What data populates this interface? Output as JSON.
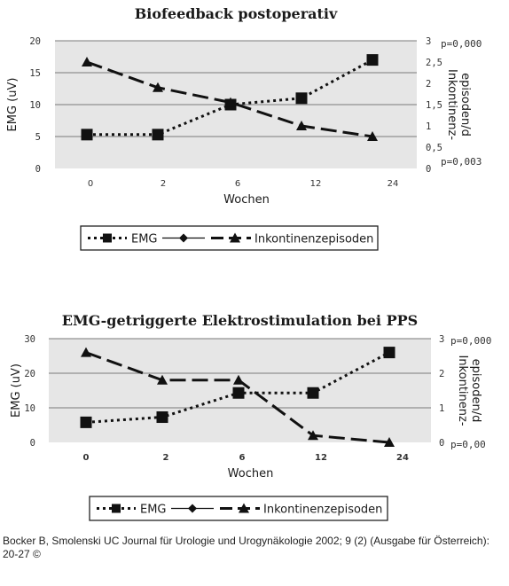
{
  "chart_data": [
    {
      "type": "line",
      "title": "Biofeedback postoperativ",
      "xlabel": "Wochen",
      "ylabel": "EMG (uV)",
      "ylabel_right_line1": "Inkontinenz-",
      "ylabel_right_line2": "episoden/d",
      "categories": [
        "0",
        "2",
        "6",
        "12",
        "24"
      ],
      "ylim": [
        0,
        20
      ],
      "y_ticks": [
        "0",
        "5",
        "10",
        "15",
        "20"
      ],
      "y2lim": [
        0,
        3
      ],
      "y2_ticks": [
        "0",
        "0,5",
        "1",
        "1,5",
        "2",
        "2,5",
        "3"
      ],
      "p_values": [
        "p=0,000",
        "p=0,003"
      ],
      "grid": true,
      "series": [
        {
          "name": "EMG",
          "axis": "left",
          "values": [
            5.3,
            5.3,
            10,
            11,
            17
          ],
          "color": "#111111"
        },
        {
          "name": "Inkontinenzepisoden",
          "axis": "right",
          "values": [
            2.5,
            1.9,
            1.55,
            1.0,
            0.75
          ],
          "color": "#111111"
        }
      ],
      "legend": [
        "EMG",
        "Inkontinenzepisoden"
      ],
      "legend_position": "bottom"
    },
    {
      "type": "line",
      "title": "EMG-getriggerte Elektrostimulation bei PPS",
      "xlabel": "Wochen",
      "ylabel": "EMG (uV)",
      "ylabel_right_line1": "Inkontinenz-",
      "ylabel_right_line2": "episoden/d",
      "categories": [
        "0",
        "2",
        "6",
        "12",
        "24"
      ],
      "ylim": [
        0,
        30
      ],
      "y_ticks": [
        "0",
        "10",
        "20",
        "30"
      ],
      "y2lim": [
        0,
        3
      ],
      "y2_ticks": [
        "0",
        "1",
        "2",
        "3"
      ],
      "p_values": [
        "p=0,000",
        "p=0,00"
      ],
      "grid": true,
      "series": [
        {
          "name": "EMG",
          "axis": "left",
          "values": [
            5.8,
            7.3,
            14.3,
            14.3,
            26
          ],
          "color": "#111111"
        },
        {
          "name": "Inkontinenzepisoden",
          "axis": "right",
          "values": [
            2.6,
            1.8,
            1.8,
            0.2,
            0.0
          ],
          "color": "#111111"
        }
      ],
      "legend": [
        "EMG",
        "Inkontinenzepisoden"
      ],
      "legend_position": "bottom"
    }
  ],
  "citation": "Bocker B, Smolenski UC Journal für Urologie und Urogynäkologie 2002; 9 (2) (Ausgabe für Österreich): 20-27 ©"
}
